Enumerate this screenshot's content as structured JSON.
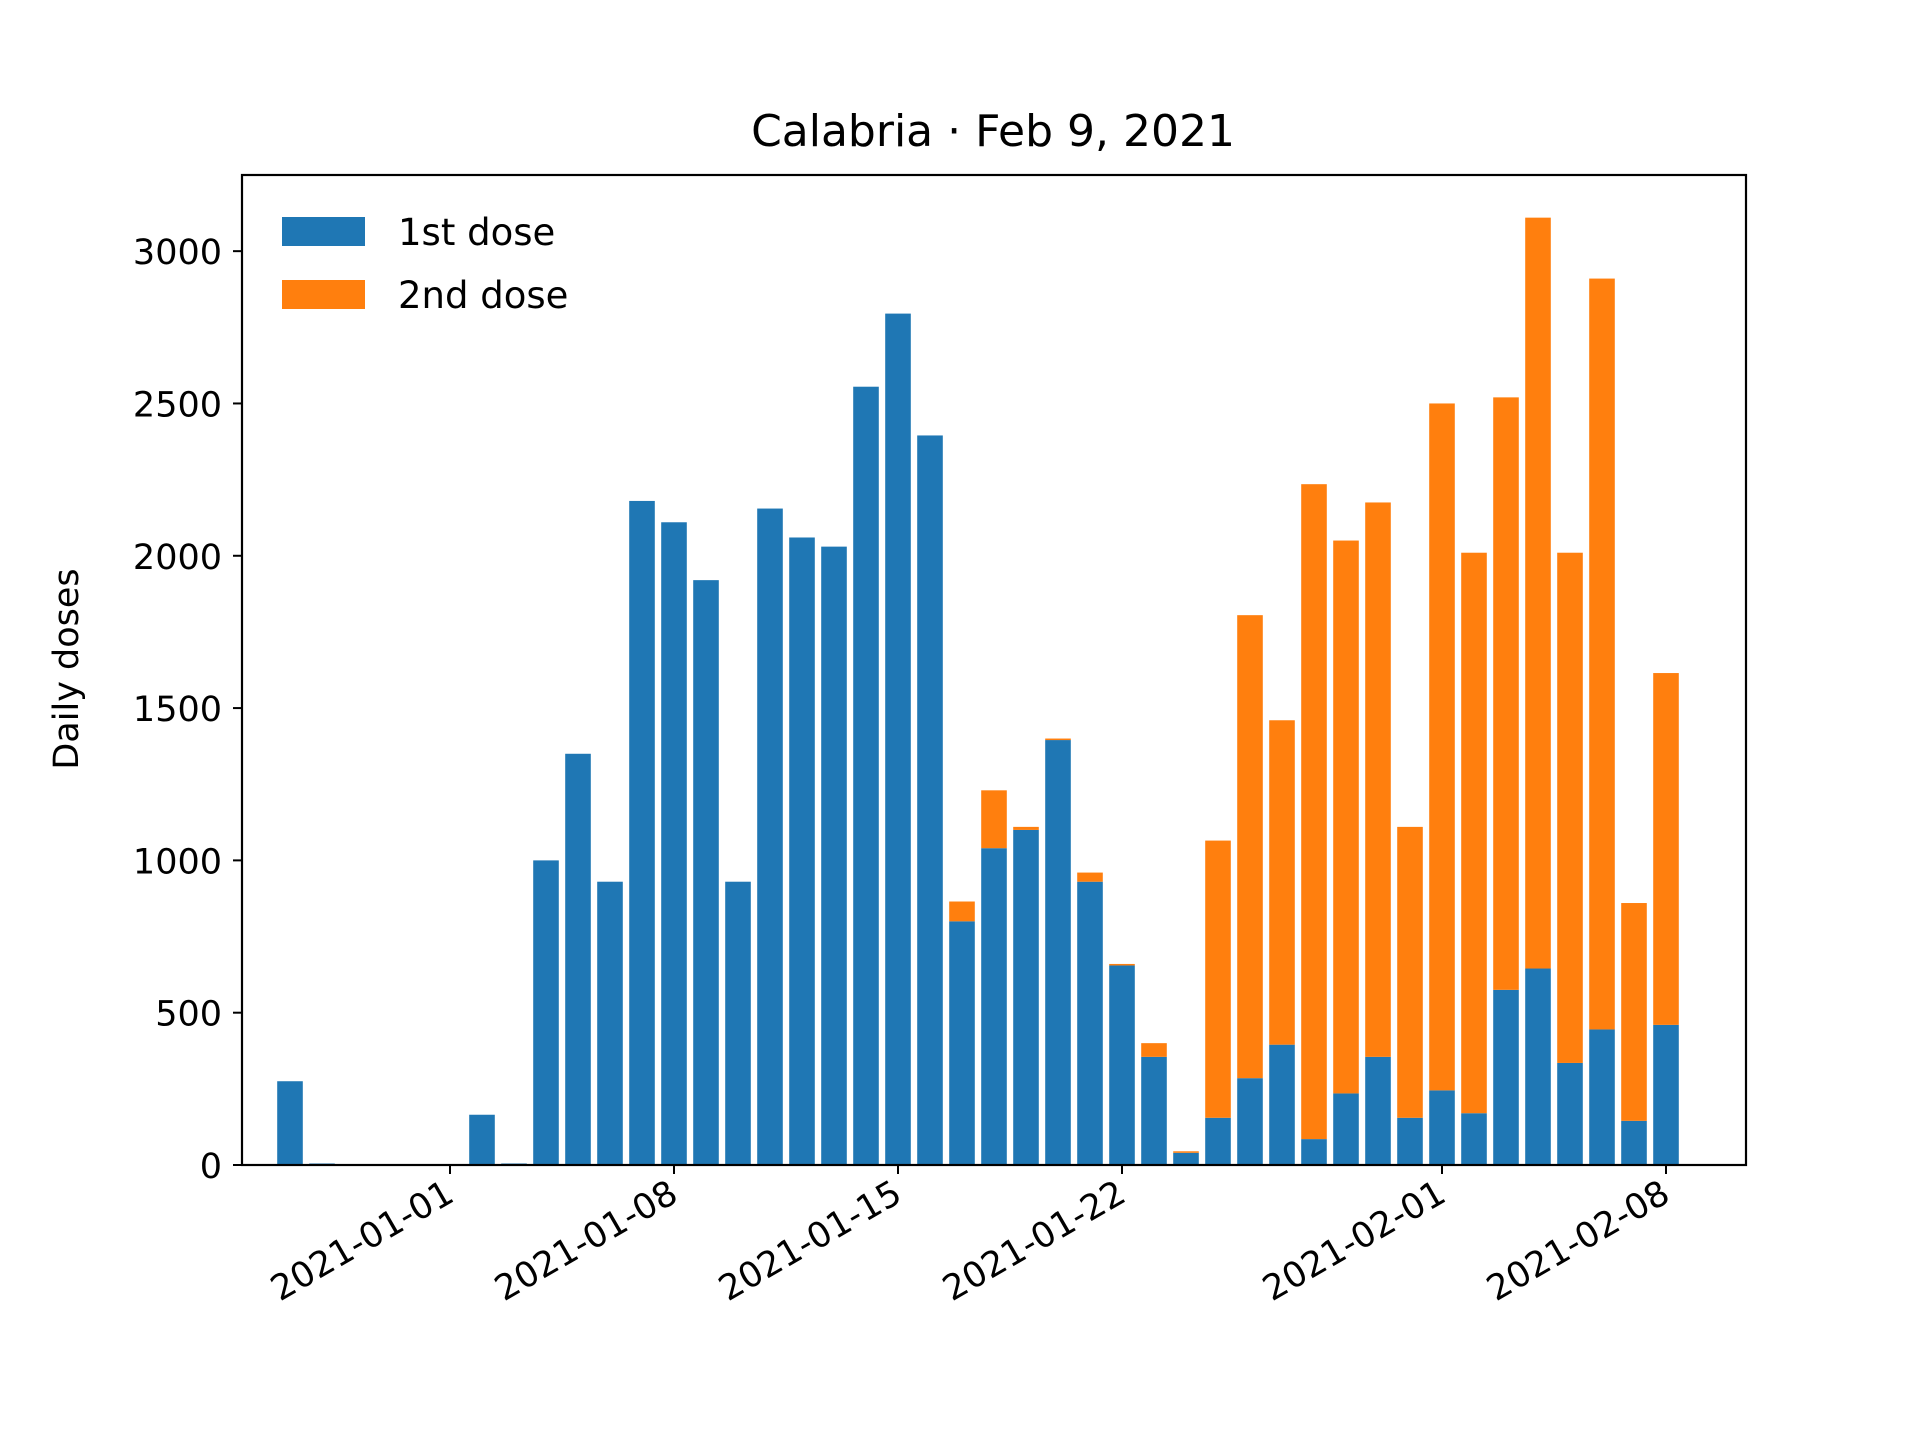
{
  "chart_data": {
    "type": "bar",
    "stacked": true,
    "title": "Calabria · Feb 9, 2021",
    "xlabel": "",
    "ylabel": "Daily doses",
    "ylim": [
      0,
      3250
    ],
    "yticks": [
      0,
      500,
      1000,
      1500,
      2000,
      2500,
      3000
    ],
    "xlim": [
      "2020-12-25",
      "2021-02-10"
    ],
    "xticks": [
      "2021-01-01",
      "2021-01-08",
      "2021-01-15",
      "2021-01-22",
      "2021-02-01",
      "2021-02-08"
    ],
    "grid": false,
    "legend_position": "top-left",
    "x": [
      "2020-12-27",
      "2020-12-28",
      "2021-01-02",
      "2021-01-03",
      "2021-01-04",
      "2021-01-05",
      "2021-01-06",
      "2021-01-07",
      "2021-01-08",
      "2021-01-09",
      "2021-01-10",
      "2021-01-11",
      "2021-01-12",
      "2021-01-13",
      "2021-01-14",
      "2021-01-15",
      "2021-01-16",
      "2021-01-17",
      "2021-01-18",
      "2021-01-19",
      "2021-01-20",
      "2021-01-21",
      "2021-01-22",
      "2021-01-23",
      "2021-01-24",
      "2021-01-25",
      "2021-01-26",
      "2021-01-27",
      "2021-01-28",
      "2021-01-29",
      "2021-01-30",
      "2021-01-31",
      "2021-02-01",
      "2021-02-02",
      "2021-02-03",
      "2021-02-04",
      "2021-02-05",
      "2021-02-06",
      "2021-02-07",
      "2021-02-08"
    ],
    "series": [
      {
        "name": "1st dose",
        "color": "#1f77b4",
        "values": [
          275,
          5,
          165,
          5,
          1000,
          1350,
          930,
          2180,
          2110,
          1920,
          930,
          2155,
          2060,
          2030,
          2555,
          2795,
          2395,
          800,
          1040,
          1100,
          1395,
          930,
          655,
          355,
          40,
          155,
          285,
          395,
          85,
          235,
          355,
          155,
          245,
          170,
          575,
          645,
          335,
          445,
          145,
          460
        ]
      },
      {
        "name": "2nd dose",
        "color": "#ff7f0e",
        "values": [
          0,
          0,
          0,
          0,
          0,
          0,
          0,
          0,
          0,
          0,
          0,
          0,
          0,
          0,
          0,
          0,
          0,
          65,
          190,
          10,
          5,
          30,
          5,
          45,
          5,
          910,
          1520,
          1065,
          2150,
          1815,
          1820,
          955,
          2255,
          1840,
          1945,
          2465,
          1675,
          2465,
          715,
          1155
        ]
      }
    ]
  }
}
